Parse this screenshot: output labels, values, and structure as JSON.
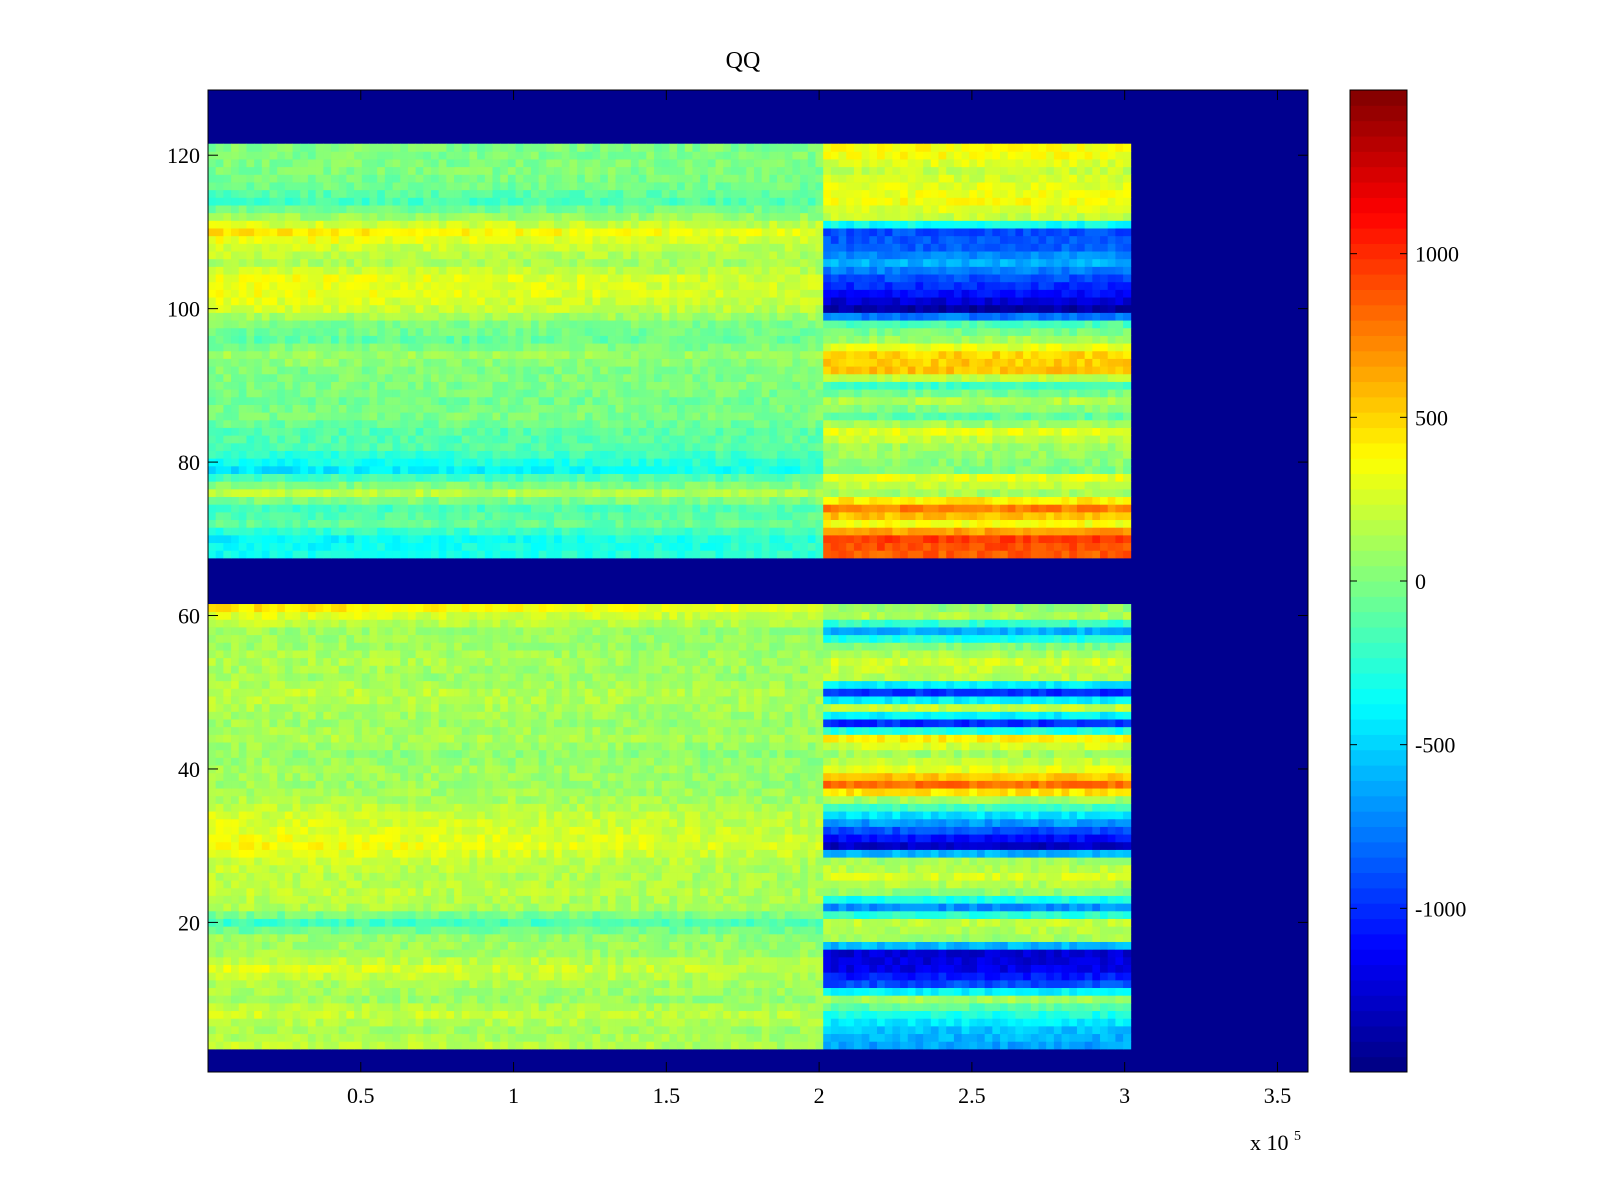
{
  "chart_data": {
    "type": "heatmap",
    "title": "QQ",
    "xlabel": "",
    "ylabel": "",
    "x_exponent_label": "x 10",
    "x_exponent_power": "5",
    "xlim": [
      0,
      3.6
    ],
    "ylim": [
      0.5,
      128.5
    ],
    "x_ticks": [
      0.5,
      1,
      1.5,
      2,
      2.5,
      3,
      3.5
    ],
    "x_tick_labels": [
      "0.5",
      "1",
      "1.5",
      "2",
      "2.5",
      "3",
      "3.5"
    ],
    "y_ticks": [
      20,
      40,
      60,
      80,
      100,
      120
    ],
    "y_tick_labels": [
      "20",
      "40",
      "60",
      "80",
      "100",
      "120"
    ],
    "colorbar": {
      "colormap": "jet",
      "range": [
        -1500,
        1500
      ],
      "ticks": [
        -1000,
        -500,
        0,
        500,
        1000
      ],
      "tick_labels": [
        "-1000",
        "-500",
        "0",
        "500",
        "1000"
      ]
    },
    "data_extent_x": [
      0,
      3.02
    ],
    "transition_x": 2.02,
    "background_value": -1500,
    "row_blocks": [
      {
        "rows": [
          4,
          61
        ]
      },
      {
        "rows": [
          68,
          121
        ]
      }
    ],
    "row_profiles": [
      {
        "row": 4,
        "before": 200,
        "after": -650
      },
      {
        "row": 6,
        "before": 120,
        "after": -550
      },
      {
        "row": 8,
        "before": 250,
        "after": -300
      },
      {
        "row": 10,
        "before": 100,
        "after": 100
      },
      {
        "row": 12,
        "before": 150,
        "after": -900
      },
      {
        "row": 14,
        "before": 300,
        "after": -1200
      },
      {
        "row": 16,
        "before": 120,
        "after": -1250
      },
      {
        "row": 18,
        "before": 80,
        "after": 100
      },
      {
        "row": 20,
        "before": -200,
        "after": 200
      },
      {
        "row": 22,
        "before": 150,
        "after": -700
      },
      {
        "row": 24,
        "before": 200,
        "after": 50
      },
      {
        "row": 26,
        "before": 180,
        "after": 250
      },
      {
        "row": 28,
        "before": 230,
        "after": 100
      },
      {
        "row": 30,
        "before": 380,
        "after": -1300
      },
      {
        "row": 32,
        "before": 300,
        "after": -900
      },
      {
        "row": 34,
        "before": 250,
        "after": -450
      },
      {
        "row": 36,
        "before": 150,
        "after": 100
      },
      {
        "row": 38,
        "before": 100,
        "after": 800
      },
      {
        "row": 40,
        "before": 120,
        "after": 300
      },
      {
        "row": 42,
        "before": 50,
        "after": 100
      },
      {
        "row": 44,
        "before": 150,
        "after": 400
      },
      {
        "row": 46,
        "before": 100,
        "after": -1000
      },
      {
        "row": 48,
        "before": 150,
        "after": 200
      },
      {
        "row": 50,
        "before": 200,
        "after": -1000
      },
      {
        "row": 52,
        "before": 100,
        "after": 150
      },
      {
        "row": 54,
        "before": 150,
        "after": 250
      },
      {
        "row": 56,
        "before": 100,
        "after": 0
      },
      {
        "row": 58,
        "before": 100,
        "after": -600
      },
      {
        "row": 60,
        "before": 300,
        "after": 150
      },
      {
        "row": 61,
        "before": 450,
        "after": 50
      },
      {
        "row": 68,
        "before": -350,
        "after": 850
      },
      {
        "row": 70,
        "before": -400,
        "after": 950
      },
      {
        "row": 72,
        "before": -100,
        "after": 350
      },
      {
        "row": 74,
        "before": -200,
        "after": 750
      },
      {
        "row": 76,
        "before": 200,
        "after": 100
      },
      {
        "row": 78,
        "before": -200,
        "after": 300
      },
      {
        "row": 79,
        "before": -450,
        "after": 0
      },
      {
        "row": 82,
        "before": -150,
        "after": 100
      },
      {
        "row": 84,
        "before": -150,
        "after": 300
      },
      {
        "row": 86,
        "before": 0,
        "after": -100
      },
      {
        "row": 88,
        "before": -50,
        "after": 150
      },
      {
        "row": 90,
        "before": 0,
        "after": -200
      },
      {
        "row": 92,
        "before": 0,
        "after": 550
      },
      {
        "row": 94,
        "before": 100,
        "after": 500
      },
      {
        "row": 96,
        "before": -100,
        "after": 100
      },
      {
        "row": 98,
        "before": 0,
        "after": -150
      },
      {
        "row": 100,
        "before": 250,
        "after": -1400
      },
      {
        "row": 102,
        "before": 350,
        "after": -1100
      },
      {
        "row": 104,
        "before": 350,
        "after": -900
      },
      {
        "row": 106,
        "before": 150,
        "after": -600
      },
      {
        "row": 108,
        "before": 250,
        "after": -850
      },
      {
        "row": 110,
        "before": 450,
        "after": -900
      },
      {
        "row": 112,
        "before": 100,
        "after": 200
      },
      {
        "row": 114,
        "before": -200,
        "after": 350
      },
      {
        "row": 116,
        "before": -50,
        "after": 300
      },
      {
        "row": 118,
        "before": 0,
        "after": 200
      },
      {
        "row": 120,
        "before": 0,
        "after": 350
      }
    ]
  }
}
